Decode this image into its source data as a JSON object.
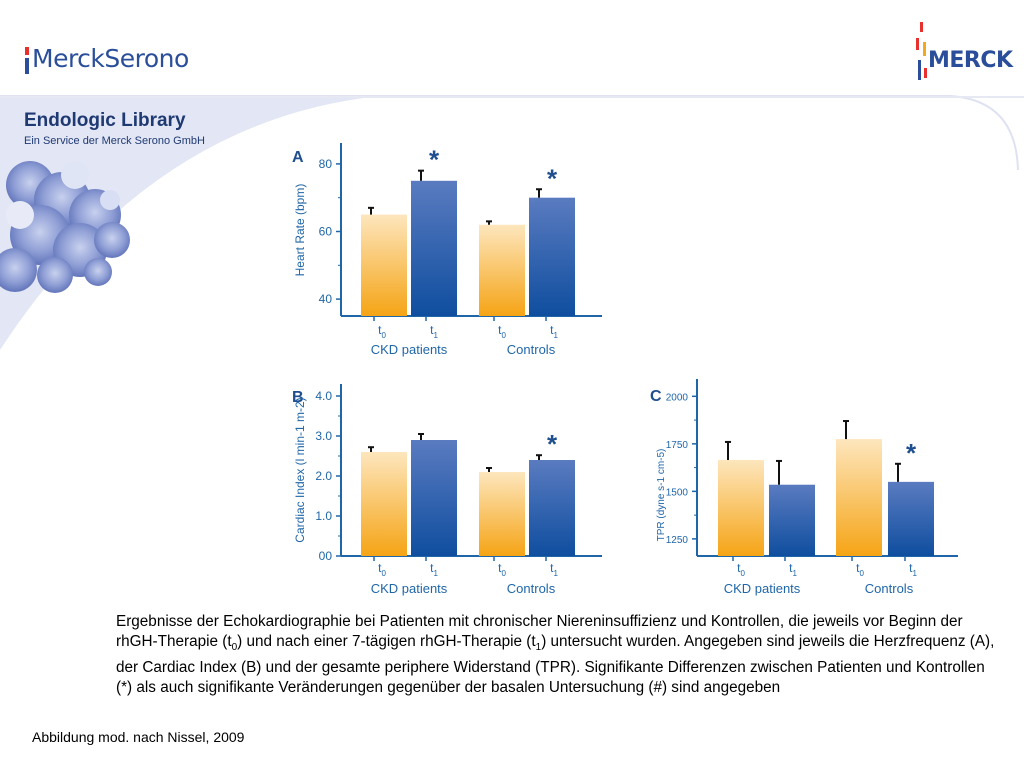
{
  "header": {
    "logo_left_text": "MerckSerono",
    "logo_right_text": "MERCK",
    "library_title": "Endologic Library",
    "library_subtitle": "Ein Service der Merck Serono GmbH"
  },
  "colors": {
    "brand_blue": "#2a4e9a",
    "panel_bg": "#e7e9f6",
    "bar_gold": "#f6a91a",
    "bar_gold_light": "#fde4b8",
    "bar_blue": "#1756a8",
    "bar_blue_light": "#7f98cc",
    "axis_blue": "#1f66a8"
  },
  "chart_data": [
    {
      "panel": "A",
      "type": "bar",
      "ylabel": "Heart Rate (bpm)",
      "ylim": [
        35,
        85
      ],
      "ytick_values": [
        40,
        60,
        80
      ],
      "ytick_labels": [
        "40",
        "60",
        "80"
      ],
      "groups": [
        "CKD patients",
        "Controls"
      ],
      "categories": [
        "t0",
        "t1",
        "t0",
        "t1"
      ],
      "values": [
        65,
        75,
        62,
        70
      ],
      "errors": [
        2,
        3,
        1,
        2.5
      ],
      "significance": [
        "",
        "*",
        "",
        "*"
      ]
    },
    {
      "panel": "B",
      "type": "bar",
      "ylabel": "Cardiac Index (l min-1 m-2)",
      "ylim": [
        0,
        4.2
      ],
      "ytick_values": [
        0,
        1,
        2,
        3,
        4
      ],
      "ytick_labels": [
        "00",
        "1.0",
        "2.0",
        "3.0",
        "4.0"
      ],
      "groups": [
        "CKD patients",
        "Controls"
      ],
      "categories": [
        "t0",
        "t1",
        "t0",
        "t1"
      ],
      "values": [
        2.6,
        2.9,
        2.1,
        2.4
      ],
      "errors": [
        0.12,
        0.15,
        0.1,
        0.12
      ],
      "significance": [
        "",
        "",
        "",
        "*"
      ]
    },
    {
      "panel": "C",
      "type": "bar",
      "ylabel": "TPR (dyne s-1 cm-5)",
      "ylim": [
        1160,
        2070
      ],
      "ytick_values": [
        1250,
        1500,
        1750,
        2000
      ],
      "ytick_labels": [
        "1250",
        "1500",
        "1750",
        "2000"
      ],
      "groups": [
        "CKD patients",
        "Controls"
      ],
      "categories": [
        "t0",
        "t1",
        "t0",
        "t1"
      ],
      "values": [
        1665,
        1535,
        1775,
        1550
      ],
      "errors": [
        95,
        125,
        95,
        95
      ],
      "significance": [
        "",
        "",
        "",
        "*"
      ]
    }
  ],
  "caption": "Ergebnisse der Echokardiographie bei Patienten mit chronischer Niereninsuffizienz und Kontrollen, die jeweils vor Beginn der rhGH-Therapie (t0) und nach einer 7-tägigen rhGH-Therapie (t1) untersucht wurden. Angegeben sind jeweils die Herzfrequenz (A), der Cardiac Index (B) und der gesamte periphere Widerstand (TPR). Signifikante Differenzen zwischen Patienten und Kontrollen (*) als auch signifikante Veränderungen gegenüber der basalen Untersuchung (#) sind angegeben",
  "source": "Abbildung mod. nach Nissel, 2009"
}
